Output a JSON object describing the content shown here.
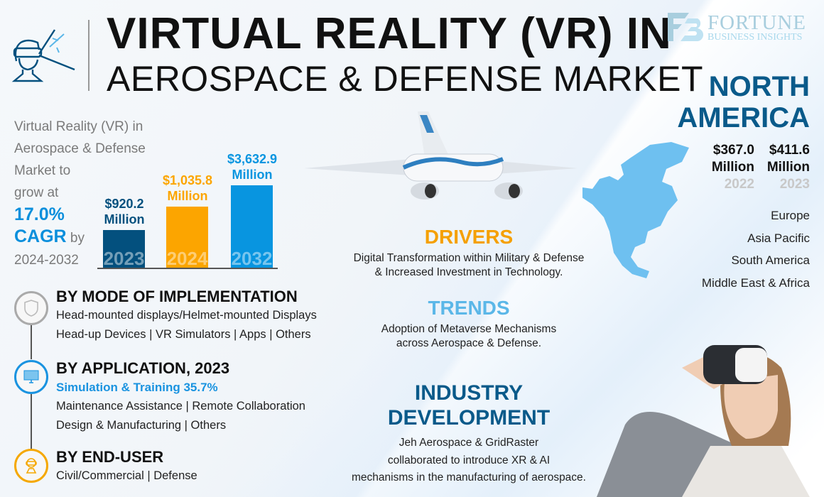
{
  "title": {
    "line1": "VIRTUAL REALITY (VR) IN",
    "line2": "AEROSPACE & DEFENSE MARKET"
  },
  "logo": {
    "name": "FORTUNE",
    "sub": "BUSINESS INSIGHTS"
  },
  "intro": {
    "lines": [
      "Virtual Reality (VR) in",
      "Aerospace & Defense",
      "Market to",
      "grow at"
    ],
    "cagr": "17.0%",
    "cagr_label": "CAGR",
    "by": "by",
    "period": "2024-2032"
  },
  "chart_data": {
    "type": "bar",
    "categories": [
      "2023",
      "2024",
      "2032"
    ],
    "values": [
      920.2,
      1035.8,
      3632.9
    ],
    "value_labels": [
      "$920.2",
      "$1,035.8",
      "$3,632.9"
    ],
    "unit": "Million",
    "colors": [
      "#03507e",
      "#fca500",
      "#0895e0"
    ]
  },
  "region": {
    "title_line1": "NORTH",
    "title_line2": "AMERICA",
    "values": [
      {
        "value": "$367.0",
        "unit": "Million",
        "year": "2022"
      },
      {
        "value": "$411.6",
        "unit": "Million",
        "year": "2023"
      }
    ],
    "others": [
      "Europe",
      "Asia Pacific",
      "South America",
      "Middle East & Africa"
    ],
    "map_color": "#6ec0f0"
  },
  "segments": [
    {
      "title": "BY MODE OF IMPLEMENTATION",
      "lines": [
        "Head-mounted displays/Helmet-mounted Displays",
        "Head-up Devices  |  VR Simulators  |  Apps  |  Others"
      ],
      "icon": "shield-icon",
      "color": "#aaaaaa"
    },
    {
      "title": "BY APPLICATION, 2023",
      "highlight": "Simulation & Training 35.7%",
      "lines": [
        "Maintenance Assistance  |  Remote Collaboration",
        "Design & Manufacturing  |  Others"
      ],
      "icon": "monitor-icon",
      "color": "#1a93e0"
    },
    {
      "title": "BY END-USER",
      "lines": [
        "Civil/Commercial  |  Defense"
      ],
      "icon": "vr-user-icon",
      "color": "#f5a800"
    }
  ],
  "drivers": {
    "title": "DRIVERS",
    "lines": [
      "Digital Transformation within Military & Defense",
      "& Increased Investment in Technology."
    ],
    "color": "#f5a000"
  },
  "trends": {
    "title": "TRENDS",
    "lines": [
      "Adoption of Metaverse Mechanisms",
      "across Aerospace & Defense."
    ],
    "color": "#5bb7e8"
  },
  "industry": {
    "title_line1": "INDUSTRY",
    "title_line2": "DEVELOPMENT",
    "lines": [
      "Jeh Aerospace & GridRaster",
      "collaborated to introduce XR & AI",
      "mechanisms in the manufacturing of aerospace."
    ],
    "color": "#0a5a8a"
  }
}
